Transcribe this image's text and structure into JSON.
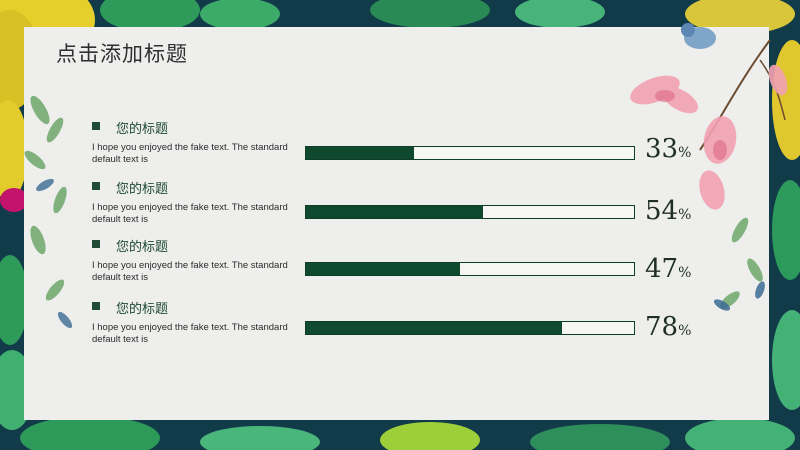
{
  "slide": {
    "title": "点击添加标题"
  },
  "items": [
    {
      "title": "您的标题",
      "desc": "I hope you enjoyed the fake text. The standard default text is",
      "value": 33,
      "value_label": "33",
      "unit": "%"
    },
    {
      "title": "您的标题",
      "desc": "I hope you enjoyed the fake text. The standard default text is",
      "value": 54,
      "value_label": "54",
      "unit": "%"
    },
    {
      "title": "您的标题",
      "desc": "I hope you enjoyed the fake text. The standard default text is",
      "value": 47,
      "value_label": "47",
      "unit": "%"
    },
    {
      "title": "您的标题",
      "desc": "I hope you enjoyed the fake text. The standard default text is",
      "value": 78,
      "value_label": "78",
      "unit": "%"
    }
  ],
  "colors": {
    "accent": "#0f4a2e",
    "card": "#eeeeed",
    "frame": "#123b4a"
  }
}
